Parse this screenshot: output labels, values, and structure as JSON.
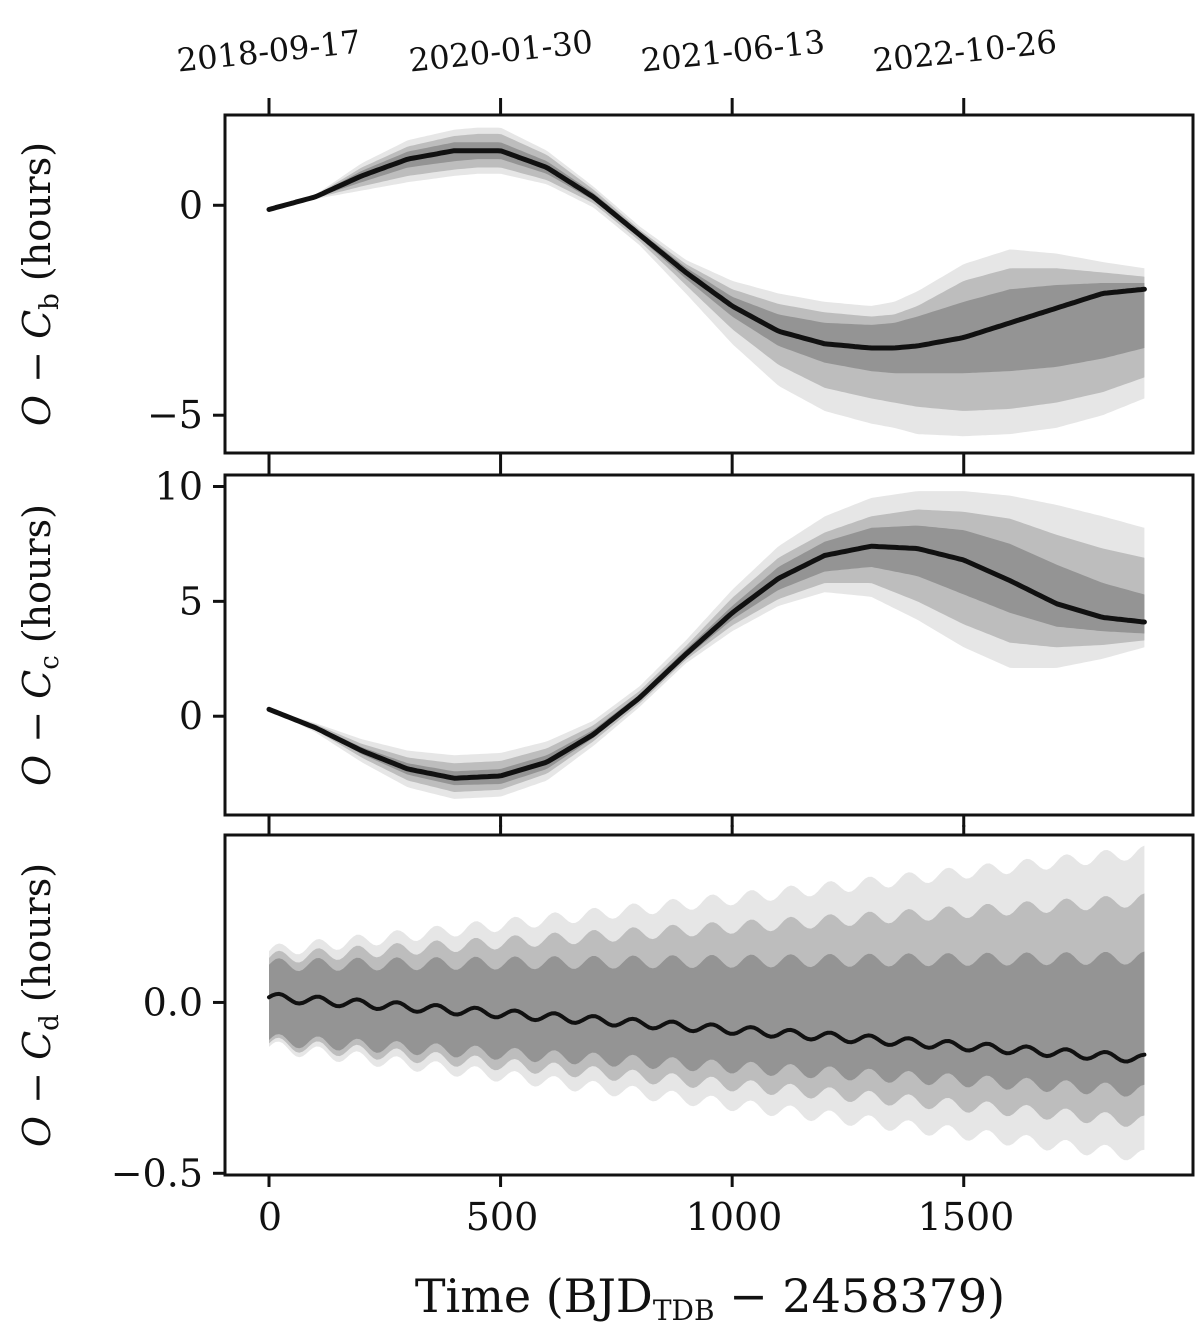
{
  "chart_data": {
    "type": "line",
    "top_axis": {
      "tick_positions": [
        0,
        500,
        1000,
        1500
      ],
      "tick_labels": [
        "2018-09-17",
        "2020-01-30",
        "2021-06-13",
        "2022-10-26"
      ]
    },
    "xlabel": {
      "main": "Time (BJD",
      "sub": "TDB",
      "suffix": " − 2458379)"
    },
    "xlim": [
      -95,
      1995
    ],
    "xticks": [
      0,
      500,
      1000,
      1500
    ],
    "xtick_labels": [
      "0",
      "500",
      "1000",
      "1500"
    ],
    "band_colors": [
      "#e6e6e6",
      "#bdbdbd",
      "#949494"
    ],
    "line_color": "#111111",
    "panels": [
      {
        "id": "b",
        "ylabel": {
          "pre": "O − C",
          "sub": "b",
          "post": " (hours)"
        },
        "ylim": [
          -5.9,
          2.15
        ],
        "yticks": [
          0,
          -5
        ],
        "ytick_labels": [
          "0",
          "−5"
        ],
        "x": [
          0,
          100,
          200,
          300,
          400,
          450,
          500,
          600,
          700,
          800,
          900,
          1000,
          1100,
          1200,
          1300,
          1350,
          1400,
          1500,
          1600,
          1700,
          1800,
          1890
        ],
        "median": [
          -0.1,
          0.2,
          0.7,
          1.1,
          1.3,
          1.3,
          1.3,
          0.9,
          0.2,
          -0.7,
          -1.6,
          -2.4,
          -3.0,
          -3.3,
          -3.4,
          -3.4,
          -3.35,
          -3.15,
          -2.8,
          -2.45,
          -2.1,
          -2.0
        ],
        "bands": [
          {
            "lower": [
              -0.1,
              0.15,
              0.35,
              0.55,
              0.7,
              0.75,
              0.75,
              0.5,
              -0.05,
              -0.95,
              -2.1,
              -3.3,
              -4.3,
              -4.9,
              -5.2,
              -5.3,
              -5.45,
              -5.5,
              -5.45,
              -5.3,
              -5.0,
              -4.6
            ],
            "upper": [
              -0.1,
              0.25,
              1.0,
              1.55,
              1.8,
              1.85,
              1.85,
              1.3,
              0.45,
              -0.5,
              -1.3,
              -1.8,
              -2.1,
              -2.3,
              -2.4,
              -2.3,
              -2.05,
              -1.4,
              -1.05,
              -1.15,
              -1.35,
              -1.5
            ]
          },
          {
            "lower": [
              -0.1,
              0.17,
              0.45,
              0.7,
              0.85,
              0.9,
              0.9,
              0.6,
              0.05,
              -0.85,
              -1.9,
              -2.95,
              -3.8,
              -4.35,
              -4.6,
              -4.7,
              -4.8,
              -4.9,
              -4.85,
              -4.7,
              -4.45,
              -4.1
            ],
            "upper": [
              -0.1,
              0.23,
              0.9,
              1.4,
              1.65,
              1.7,
              1.7,
              1.2,
              0.38,
              -0.58,
              -1.4,
              -2.0,
              -2.35,
              -2.55,
              -2.65,
              -2.6,
              -2.4,
              -1.8,
              -1.5,
              -1.5,
              -1.6,
              -1.7
            ]
          },
          {
            "lower": [
              -0.1,
              0.18,
              0.55,
              0.9,
              1.05,
              1.1,
              1.1,
              0.75,
              0.12,
              -0.78,
              -1.75,
              -2.65,
              -3.35,
              -3.75,
              -3.95,
              -4.0,
              -4.0,
              -4.0,
              -3.95,
              -3.85,
              -3.65,
              -3.4
            ],
            "upper": [
              -0.1,
              0.22,
              0.82,
              1.28,
              1.5,
              1.5,
              1.5,
              1.05,
              0.3,
              -0.62,
              -1.48,
              -2.18,
              -2.6,
              -2.8,
              -2.85,
              -2.8,
              -2.65,
              -2.3,
              -2.0,
              -1.9,
              -1.85,
              -1.85
            ]
          }
        ]
      },
      {
        "id": "c",
        "ylabel": {
          "pre": "O − C",
          "sub": "c",
          "post": " (hours)"
        },
        "ylim": [
          -4.3,
          10.5
        ],
        "yticks": [
          10,
          5,
          0
        ],
        "ytick_labels": [
          "10",
          "5",
          "0"
        ],
        "x": [
          0,
          100,
          200,
          300,
          400,
          500,
          600,
          700,
          800,
          900,
          1000,
          1100,
          1200,
          1300,
          1400,
          1500,
          1600,
          1700,
          1800,
          1890
        ],
        "median": [
          0.3,
          -0.5,
          -1.5,
          -2.3,
          -2.7,
          -2.6,
          -2.0,
          -0.8,
          0.8,
          2.7,
          4.5,
          6.0,
          7.0,
          7.4,
          7.3,
          6.8,
          5.9,
          4.9,
          4.3,
          4.1
        ],
        "bands": [
          {
            "lower": [
              0.3,
              -0.7,
              -2.0,
              -3.1,
              -3.6,
              -3.5,
              -2.8,
              -1.3,
              0.4,
              2.3,
              3.7,
              4.8,
              5.4,
              5.2,
              4.2,
              3.0,
              2.1,
              2.1,
              2.5,
              3.0
            ],
            "upper": [
              0.3,
              -0.3,
              -1.0,
              -1.5,
              -1.7,
              -1.6,
              -1.1,
              -0.2,
              1.3,
              3.3,
              5.5,
              7.4,
              8.7,
              9.5,
              9.8,
              9.8,
              9.6,
              9.2,
              8.7,
              8.2
            ]
          },
          {
            "lower": [
              0.3,
              -0.6,
              -1.8,
              -2.8,
              -3.3,
              -3.2,
              -2.5,
              -1.1,
              0.55,
              2.45,
              3.95,
              5.1,
              5.8,
              5.8,
              5.0,
              4.0,
              3.2,
              3.0,
              3.1,
              3.3
            ],
            "upper": [
              0.3,
              -0.35,
              -1.2,
              -1.8,
              -2.05,
              -1.95,
              -1.4,
              -0.4,
              1.1,
              3.05,
              5.15,
              6.9,
              8.0,
              8.7,
              9.0,
              8.9,
              8.6,
              7.9,
              7.3,
              6.9
            ]
          },
          {
            "lower": [
              0.3,
              -0.55,
              -1.65,
              -2.55,
              -3.0,
              -2.95,
              -2.3,
              -0.95,
              0.65,
              2.55,
              4.2,
              5.5,
              6.3,
              6.5,
              6.1,
              5.3,
              4.5,
              3.9,
              3.7,
              3.6
            ],
            "upper": [
              0.3,
              -0.4,
              -1.35,
              -2.05,
              -2.4,
              -2.3,
              -1.7,
              -0.6,
              0.95,
              2.9,
              4.8,
              6.5,
              7.6,
              8.2,
              8.3,
              8.1,
              7.5,
              6.6,
              5.8,
              5.3
            ]
          }
        ]
      },
      {
        "id": "d",
        "ylabel": {
          "pre": "O − C",
          "sub": "d",
          "post": " (hours)"
        },
        "ylim": [
          -0.505,
          0.49
        ],
        "yticks": [
          0.0,
          -0.5
        ],
        "ytick_labels": [
          "0.0",
          "−0.5"
        ],
        "x": [
          0,
          1890
        ],
        "median": [
          0.015,
          -0.165
        ],
        "oscillation": {
          "period_days": 85,
          "amplitude": 0.012
        },
        "bands": [
          {
            "lower": [
              -0.13,
              -0.45
            ],
            "upper": [
              0.15,
              0.44
            ]
          },
          {
            "lower": [
              -0.12,
              -0.35
            ],
            "upper": [
              0.13,
              0.3
            ]
          },
          {
            "lower": [
              -0.11,
              -0.26
            ],
            "upper": [
              0.11,
              0.13
            ]
          }
        ]
      }
    ]
  }
}
